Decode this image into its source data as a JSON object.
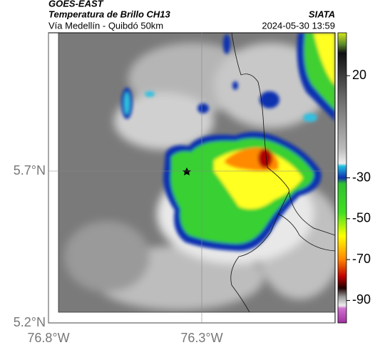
{
  "header": {
    "source": "GOES-EAST",
    "title": "Temperatura de Brillo CH13",
    "subtitle": "Vía Medellín - Quibdó 50km",
    "brand": "SIATA",
    "timestamp": "2024-05-30 13:59"
  },
  "map": {
    "lat_ticks": [
      {
        "value": 5.7,
        "label": "5.7°N"
      },
      {
        "value": 5.2,
        "label": "5.2°N"
      }
    ],
    "lon_ticks": [
      {
        "value": -76.8,
        "label": "76.8°W"
      },
      {
        "value": -76.3,
        "label": "76.3°W"
      }
    ],
    "colorbar_lim": [
      -101,
      41
    ],
    "colorbar_ticks": [
      20,
      -30,
      -50,
      -70,
      -90
    ]
  }
}
